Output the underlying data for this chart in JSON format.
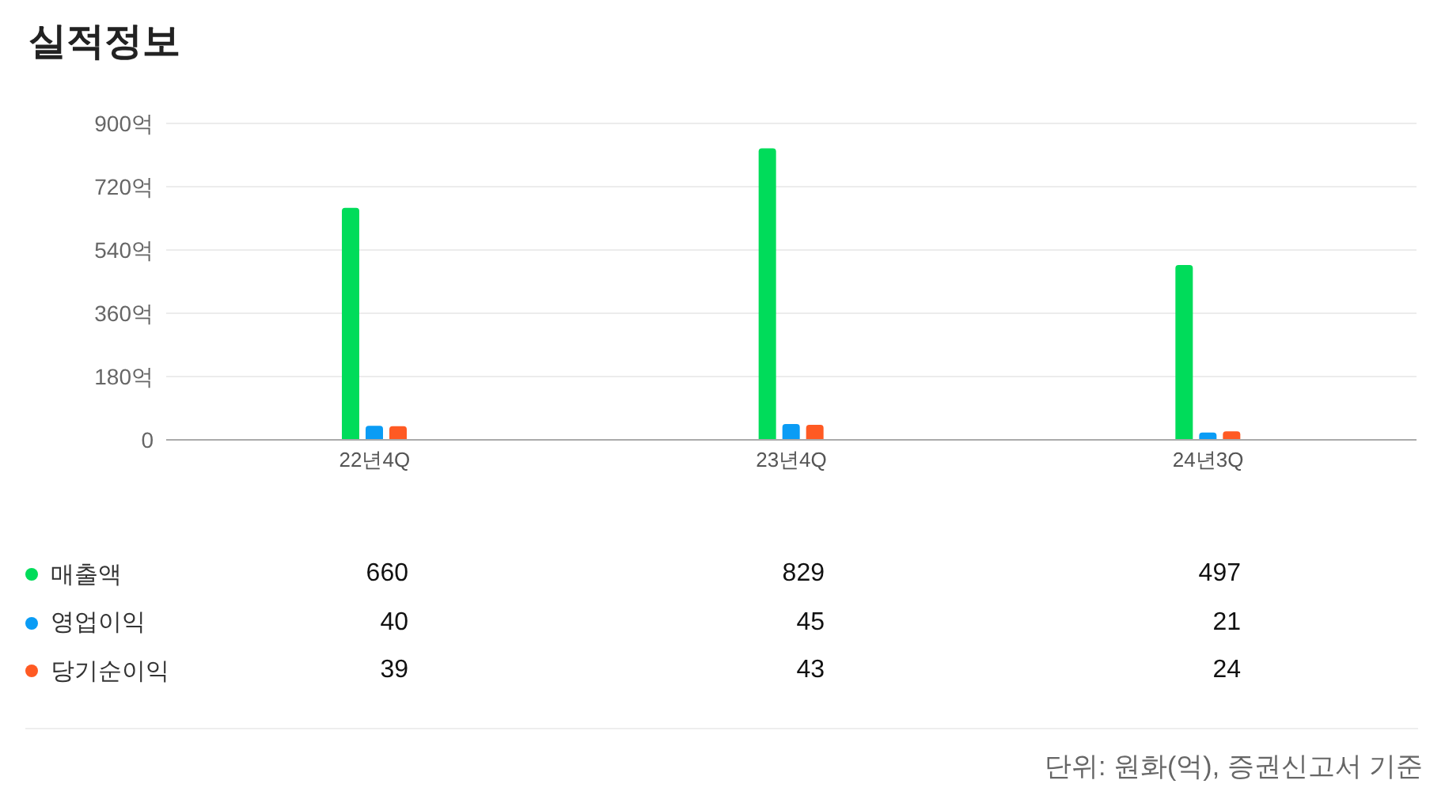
{
  "chart_data": {
    "type": "bar",
    "title": "실적정보",
    "categories": [
      "22년4Q",
      "23년4Q",
      "24년3Q"
    ],
    "series": [
      {
        "name": "매출액",
        "color": "#00dc5a",
        "values": [
          660,
          829,
          497
        ]
      },
      {
        "name": "영업이익",
        "color": "#0a9cf5",
        "values": [
          40,
          45,
          21
        ]
      },
      {
        "name": "당기순이익",
        "color": "#ff5a23",
        "values": [
          39,
          43,
          24
        ]
      }
    ],
    "ylim": [
      0,
      900
    ],
    "yticks": [
      0,
      {
        "value": 180,
        "label": "180억"
      },
      {
        "value": 360,
        "label": "360억"
      },
      {
        "value": 540,
        "label": "540억"
      },
      {
        "value": 720,
        "label": "720억"
      },
      {
        "value": 900,
        "label": "900억"
      }
    ],
    "grid": "y",
    "legend": "bottom",
    "data_labels": true,
    "annotations": [
      "단위: 원화(억), 증권신고서 기준"
    ]
  }
}
